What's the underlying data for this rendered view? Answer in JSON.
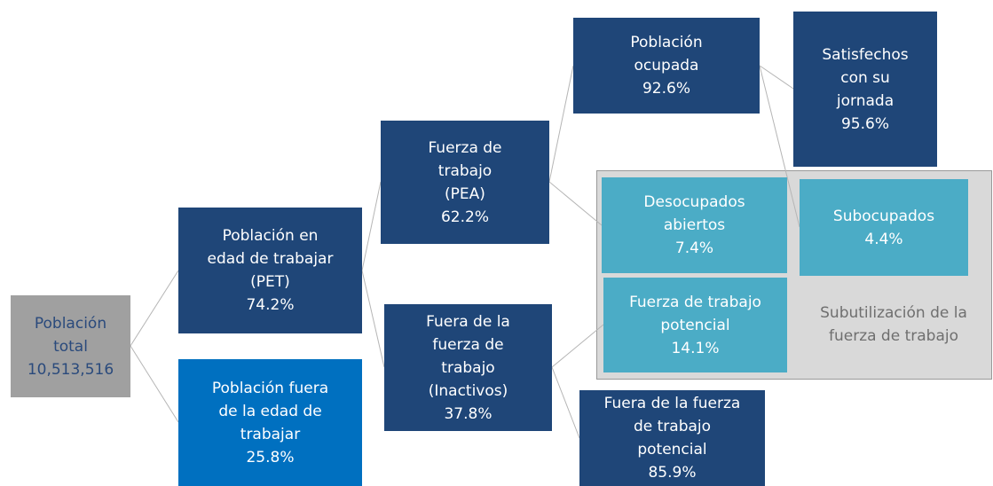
{
  "nodes": [
    {
      "lines": [
        "Población",
        "total"
      ],
      "value": "10,513,516"
    },
    {
      "lines": [
        "Población en",
        "edad de trabajar",
        "(PET)"
      ],
      "value": "74.2%"
    },
    {
      "lines": [
        "Población fuera",
        "de la edad de",
        "trabajar"
      ],
      "value": "25.8%"
    },
    {
      "lines": [
        "Fuerza de",
        "trabajo",
        "(PEA)"
      ],
      "value": "62.2%"
    },
    {
      "lines": [
        "Fuera de la",
        "fuerza de",
        "trabajo",
        "(Inactivos)"
      ],
      "value": "37.8%"
    },
    {
      "lines": [
        "Población",
        "ocupada"
      ],
      "value": "92.6%"
    },
    {
      "lines": [
        "Satisfechos",
        "con su",
        "jornada"
      ],
      "value": "95.6%"
    },
    {
      "lines": [
        "Desocupados",
        "abiertos"
      ],
      "value": "7.4%"
    },
    {
      "lines": [
        "Subocupados"
      ],
      "value": "4.4%"
    },
    {
      "lines": [
        "Fuerza de trabajo",
        "potencial"
      ],
      "value": "14.1%"
    },
    {
      "lines": [
        "Fuera de la fuerza",
        "de trabajo",
        "potencial"
      ],
      "value": "85.9%"
    }
  ],
  "group_label": [
    "Subutilización de la",
    "fuerza de trabajo"
  ]
}
